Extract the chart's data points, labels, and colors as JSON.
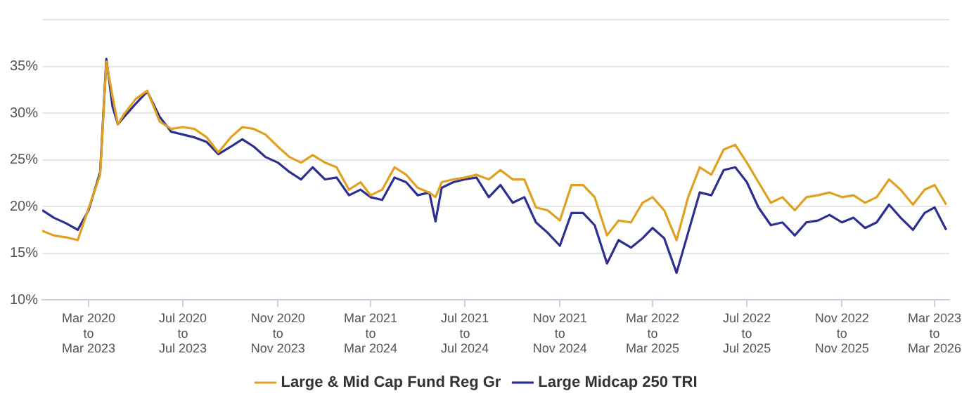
{
  "chart_data": {
    "type": "line",
    "x": [
      "2020-01-01",
      "2020-01-16",
      "2020-02-01",
      "2020-02-16",
      "2020-03-01",
      "2020-03-16",
      "2020-03-24",
      "2020-04-01",
      "2020-04-08",
      "2020-04-16",
      "2020-05-01",
      "2020-05-16",
      "2020-06-01",
      "2020-06-16",
      "2020-07-01",
      "2020-07-16",
      "2020-08-01",
      "2020-08-16",
      "2020-09-01",
      "2020-09-16",
      "2020-10-01",
      "2020-10-16",
      "2020-11-01",
      "2020-11-16",
      "2020-12-01",
      "2020-12-16",
      "2021-01-01",
      "2021-01-16",
      "2021-02-01",
      "2021-02-16",
      "2021-03-01",
      "2021-03-16",
      "2021-04-01",
      "2021-04-16",
      "2021-05-01",
      "2021-05-16",
      "2021-05-24",
      "2021-06-01",
      "2021-06-16",
      "2021-07-01",
      "2021-07-16",
      "2021-08-01",
      "2021-08-16",
      "2021-09-01",
      "2021-09-16",
      "2021-10-01",
      "2021-10-16",
      "2021-11-01",
      "2021-11-16",
      "2021-12-01",
      "2021-12-16",
      "2022-01-01",
      "2022-01-16",
      "2022-02-01",
      "2022-02-16",
      "2022-03-01",
      "2022-03-16",
      "2022-04-01",
      "2022-04-16",
      "2022-05-01",
      "2022-05-16",
      "2022-06-01",
      "2022-06-16",
      "2022-07-01",
      "2022-07-16",
      "2022-08-01",
      "2022-08-16",
      "2022-09-01",
      "2022-09-16",
      "2022-10-01",
      "2022-10-16",
      "2022-11-01",
      "2022-11-16",
      "2022-12-01",
      "2022-12-16",
      "2023-01-01",
      "2023-01-16",
      "2023-02-01",
      "2023-02-16",
      "2023-03-01",
      "2023-03-16"
    ],
    "series": [
      {
        "name": "Large & Mid Cap Fund Reg Gr",
        "color": "#e0a020",
        "values": [
          17.4,
          16.9,
          16.7,
          16.4,
          19.8,
          23.4,
          35.5,
          31.8,
          28.8,
          29.9,
          31.5,
          32.4,
          29.1,
          28.3,
          28.5,
          28.3,
          27.4,
          25.8,
          27.4,
          28.5,
          28.3,
          27.7,
          26.4,
          25.3,
          24.7,
          25.5,
          24.7,
          24.2,
          21.8,
          22.6,
          21.2,
          21.8,
          24.2,
          23.4,
          22.0,
          21.5,
          21.0,
          22.6,
          22.9,
          23.1,
          23.4,
          22.9,
          23.9,
          22.9,
          22.9,
          19.9,
          19.6,
          18.5,
          22.3,
          22.3,
          21.0,
          16.9,
          18.5,
          18.3,
          20.4,
          21.0,
          19.6,
          16.4,
          21.0,
          24.2,
          23.4,
          26.1,
          26.6,
          24.7,
          22.6,
          20.4,
          21.0,
          19.6,
          21.0,
          21.2,
          21.5,
          21.0,
          21.2,
          20.4,
          21.0,
          22.9,
          21.8,
          20.2,
          21.8,
          22.3,
          20.2
        ]
      },
      {
        "name": "Large Midcap 250 TRI",
        "color": "#2b2f8f",
        "values": [
          19.6,
          18.8,
          18.2,
          17.5,
          19.6,
          23.7,
          35.8,
          30.7,
          28.8,
          29.6,
          31.0,
          32.3,
          29.6,
          28.0,
          27.7,
          27.4,
          26.9,
          25.6,
          26.4,
          27.2,
          26.4,
          25.3,
          24.7,
          23.7,
          22.9,
          24.2,
          22.9,
          23.1,
          21.2,
          21.8,
          21.0,
          20.7,
          23.1,
          22.6,
          21.2,
          21.5,
          18.4,
          22.0,
          22.6,
          22.9,
          23.1,
          21.0,
          22.3,
          20.4,
          21.0,
          18.3,
          17.2,
          15.8,
          19.3,
          19.3,
          18.0,
          13.9,
          16.4,
          15.6,
          16.6,
          17.7,
          16.6,
          12.9,
          17.2,
          21.5,
          21.2,
          23.9,
          24.2,
          22.6,
          19.9,
          18.0,
          18.3,
          16.9,
          18.3,
          18.5,
          19.1,
          18.3,
          18.8,
          17.7,
          18.3,
          20.2,
          18.8,
          17.5,
          19.3,
          19.9,
          17.5
        ]
      }
    ],
    "xlim": [
      "2020-01-01",
      "2023-03-20"
    ],
    "xticks": [
      {
        "value": "2020-03",
        "label": "Mar 2020\nto\nMar 2023"
      },
      {
        "value": "2020-07",
        "label": "Jul 2020\nto\nJul 2023"
      },
      {
        "value": "2020-11",
        "label": "Nov 2020\nto\nNov 2023"
      },
      {
        "value": "2021-03",
        "label": "Mar 2021\nto\nMar 2024"
      },
      {
        "value": "2021-07",
        "label": "Jul 2021\nto\nJul 2024"
      },
      {
        "value": "2021-11",
        "label": "Nov 2021\nto\nNov 2024"
      },
      {
        "value": "2022-03",
        "label": "Mar 2022\nto\nMar 2025"
      },
      {
        "value": "2022-07",
        "label": "Jul 2022\nto\nJul 2025"
      },
      {
        "value": "2022-11",
        "label": "Nov 2022\nto\nNov 2025"
      },
      {
        "value": "2023-03",
        "label": "Mar 2023\nto\nMar 2026"
      }
    ],
    "ylim": [
      10,
      40
    ],
    "yticks": [
      {
        "value": 10,
        "label": "10%"
      },
      {
        "value": 15,
        "label": "15%"
      },
      {
        "value": 20,
        "label": "20%"
      },
      {
        "value": 25,
        "label": "25%"
      },
      {
        "value": 30,
        "label": "30%"
      },
      {
        "value": 35,
        "label": "35%"
      },
      {
        "value": 40,
        "label": null
      }
    ],
    "grid": "y",
    "legend": "bottom",
    "marker": "none",
    "line_style": "solid"
  }
}
